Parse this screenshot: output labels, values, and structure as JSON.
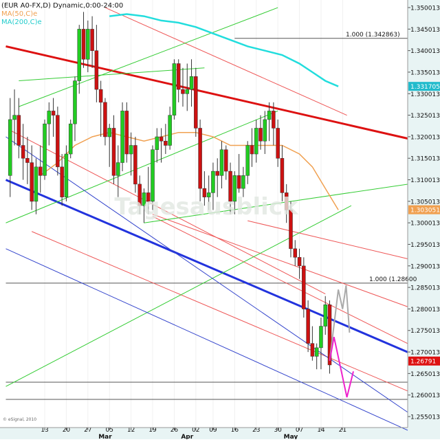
{
  "header": {
    "symbol_line": "(EUR A0-FX,D) Dynamic,0:00-24:00",
    "ma50_label": "MA(50,C)e",
    "ma200_label": "MA(200,C)e"
  },
  "watermark": "Tagesausblick",
  "copyright": "© eSignal, 2010",
  "colors": {
    "bull": "#22cc22",
    "bear": "#cc1111",
    "ma50": "#f0a050",
    "ma200": "#22dddd",
    "chart_bg": "#ffffff",
    "axis_bg": "#e8f4f4",
    "price_badge": "#dd1111",
    "ma200_badge": "#22bbcc",
    "ma50_badge": "#f0a050",
    "forecast_gray": "#aaaaaa",
    "forecast_pink": "#ee22cc"
  },
  "chart_data": {
    "type": "candlestick",
    "title": "(EUR A0-FX,D) Dynamic,0:00-24:00",
    "ylim": [
      1.2515,
      1.3515
    ],
    "x_tick_labels": [
      {
        "day": 9,
        "label": "13"
      },
      {
        "day": 14,
        "label": "20"
      },
      {
        "day": 19,
        "label": "27"
      },
      {
        "day": 24,
        "label": "05"
      },
      {
        "day": 29,
        "label": "12"
      },
      {
        "day": 34,
        "label": "19"
      },
      {
        "day": 39,
        "label": "26"
      },
      {
        "day": 44,
        "label": "02"
      },
      {
        "day": 48,
        "label": "09"
      },
      {
        "day": 53,
        "label": "16"
      },
      {
        "day": 58,
        "label": "23"
      },
      {
        "day": 63,
        "label": "30"
      },
      {
        "day": 68,
        "label": "07"
      },
      {
        "day": 73,
        "label": "14"
      },
      {
        "day": 78,
        "label": "21"
      }
    ],
    "month_labels": [
      {
        "day": 23,
        "label": "Mar"
      },
      {
        "day": 42,
        "label": "Apr"
      },
      {
        "day": 66,
        "label": "May"
      }
    ],
    "y_tick_labels": [
      "1.350013",
      "1.345013",
      "1.340013",
      "1.335013",
      "1.330013",
      "1.325013",
      "1.320013",
      "1.315013",
      "1.310013",
      "1.305013",
      "1.300013",
      "1.295013",
      "1.290013",
      "1.285013",
      "1.280013",
      "1.275013",
      "1.270013",
      "1.265013",
      "1.260013",
      "1.255013"
    ],
    "y_tick_values": [
      1.350013,
      1.345013,
      1.340013,
      1.335013,
      1.330013,
      1.325013,
      1.320013,
      1.315013,
      1.310013,
      1.305013,
      1.300013,
      1.295013,
      1.290013,
      1.285013,
      1.280013,
      1.275013,
      1.270013,
      1.265013,
      1.260013,
      1.255013
    ],
    "last_price_label": "1.26791",
    "last_price": 1.26791,
    "ma200_value_label": "1.331705",
    "ma200_value": 1.331705,
    "ma50_value_label": "1.303051",
    "ma50_value": 1.303051,
    "candles": [
      {
        "d": 1,
        "o": 1.311,
        "h": 1.329,
        "l": 1.306,
        "c": 1.324
      },
      {
        "d": 2,
        "o": 1.324,
        "h": 1.331,
        "l": 1.318,
        "c": 1.325
      },
      {
        "d": 3,
        "o": 1.325,
        "h": 1.329,
        "l": 1.315,
        "c": 1.318
      },
      {
        "d": 4,
        "o": 1.318,
        "h": 1.323,
        "l": 1.31,
        "c": 1.315
      },
      {
        "d": 5,
        "o": 1.315,
        "h": 1.32,
        "l": 1.309,
        "c": 1.314
      },
      {
        "d": 6,
        "o": 1.314,
        "h": 1.318,
        "l": 1.303,
        "c": 1.305
      },
      {
        "d": 7,
        "o": 1.305,
        "h": 1.315,
        "l": 1.302,
        "c": 1.313
      },
      {
        "d": 8,
        "o": 1.313,
        "h": 1.318,
        "l": 1.307,
        "c": 1.311
      },
      {
        "d": 9,
        "o": 1.311,
        "h": 1.324,
        "l": 1.31,
        "c": 1.323
      },
      {
        "d": 10,
        "o": 1.323,
        "h": 1.328,
        "l": 1.318,
        "c": 1.326
      },
      {
        "d": 11,
        "o": 1.326,
        "h": 1.329,
        "l": 1.32,
        "c": 1.325
      },
      {
        "d": 12,
        "o": 1.325,
        "h": 1.327,
        "l": 1.311,
        "c": 1.313
      },
      {
        "d": 13,
        "o": 1.313,
        "h": 1.316,
        "l": 1.304,
        "c": 1.306
      },
      {
        "d": 14,
        "o": 1.306,
        "h": 1.318,
        "l": 1.305,
        "c": 1.316
      },
      {
        "d": 15,
        "o": 1.316,
        "h": 1.324,
        "l": 1.315,
        "c": 1.323
      },
      {
        "d": 16,
        "o": 1.323,
        "h": 1.334,
        "l": 1.319,
        "c": 1.333
      },
      {
        "d": 17,
        "o": 1.333,
        "h": 1.346,
        "l": 1.33,
        "c": 1.345
      },
      {
        "d": 18,
        "o": 1.345,
        "h": 1.349,
        "l": 1.336,
        "c": 1.338
      },
      {
        "d": 19,
        "o": 1.338,
        "h": 1.347,
        "l": 1.335,
        "c": 1.345
      },
      {
        "d": 20,
        "o": 1.345,
        "h": 1.348,
        "l": 1.336,
        "c": 1.34
      },
      {
        "d": 21,
        "o": 1.34,
        "h": 1.346,
        "l": 1.328,
        "c": 1.331
      },
      {
        "d": 22,
        "o": 1.331,
        "h": 1.333,
        "l": 1.32,
        "c": 1.328
      },
      {
        "d": 23,
        "o": 1.328,
        "h": 1.329,
        "l": 1.318,
        "c": 1.32
      },
      {
        "d": 24,
        "o": 1.32,
        "h": 1.323,
        "l": 1.313,
        "c": 1.322
      },
      {
        "d": 25,
        "o": 1.322,
        "h": 1.325,
        "l": 1.309,
        "c": 1.311
      },
      {
        "d": 26,
        "o": 1.311,
        "h": 1.318,
        "l": 1.306,
        "c": 1.314
      },
      {
        "d": 27,
        "o": 1.314,
        "h": 1.328,
        "l": 1.312,
        "c": 1.326
      },
      {
        "d": 28,
        "o": 1.326,
        "h": 1.328,
        "l": 1.314,
        "c": 1.316
      },
      {
        "d": 29,
        "o": 1.316,
        "h": 1.321,
        "l": 1.311,
        "c": 1.318
      },
      {
        "d": 30,
        "o": 1.318,
        "h": 1.32,
        "l": 1.307,
        "c": 1.309
      },
      {
        "d": 31,
        "o": 1.309,
        "h": 1.311,
        "l": 1.302,
        "c": 1.304
      },
      {
        "d": 32,
        "o": 1.304,
        "h": 1.308,
        "l": 1.3,
        "c": 1.307
      },
      {
        "d": 33,
        "o": 1.307,
        "h": 1.313,
        "l": 1.302,
        "c": 1.305
      },
      {
        "d": 34,
        "o": 1.305,
        "h": 1.318,
        "l": 1.303,
        "c": 1.317
      },
      {
        "d": 35,
        "o": 1.317,
        "h": 1.322,
        "l": 1.314,
        "c": 1.32
      },
      {
        "d": 36,
        "o": 1.32,
        "h": 1.322,
        "l": 1.314,
        "c": 1.319
      },
      {
        "d": 37,
        "o": 1.319,
        "h": 1.323,
        "l": 1.316,
        "c": 1.318
      },
      {
        "d": 38,
        "o": 1.318,
        "h": 1.327,
        "l": 1.317,
        "c": 1.325
      },
      {
        "d": 39,
        "o": 1.325,
        "h": 1.338,
        "l": 1.324,
        "c": 1.337
      },
      {
        "d": 40,
        "o": 1.337,
        "h": 1.338,
        "l": 1.328,
        "c": 1.331
      },
      {
        "d": 41,
        "o": 1.331,
        "h": 1.336,
        "l": 1.327,
        "c": 1.33
      },
      {
        "d": 42,
        "o": 1.33,
        "h": 1.337,
        "l": 1.326,
        "c": 1.331
      },
      {
        "d": 43,
        "o": 1.331,
        "h": 1.338,
        "l": 1.327,
        "c": 1.334
      },
      {
        "d": 44,
        "o": 1.334,
        "h": 1.336,
        "l": 1.32,
        "c": 1.322
      },
      {
        "d": 45,
        "o": 1.322,
        "h": 1.324,
        "l": 1.305,
        "c": 1.308
      },
      {
        "d": 46,
        "o": 1.308,
        "h": 1.312,
        "l": 1.304,
        "c": 1.306
      },
      {
        "d": 47,
        "o": 1.306,
        "h": 1.311,
        "l": 1.303,
        "c": 1.307
      },
      {
        "d": 48,
        "o": 1.307,
        "h": 1.314,
        "l": 1.303,
        "c": 1.312
      },
      {
        "d": 49,
        "o": 1.312,
        "h": 1.315,
        "l": 1.306,
        "c": 1.311
      },
      {
        "d": 50,
        "o": 1.311,
        "h": 1.319,
        "l": 1.308,
        "c": 1.317
      },
      {
        "d": 51,
        "o": 1.317,
        "h": 1.318,
        "l": 1.31,
        "c": 1.312
      },
      {
        "d": 52,
        "o": 1.312,
        "h": 1.314,
        "l": 1.302,
        "c": 1.305
      },
      {
        "d": 53,
        "o": 1.305,
        "h": 1.312,
        "l": 1.302,
        "c": 1.311
      },
      {
        "d": 54,
        "o": 1.311,
        "h": 1.316,
        "l": 1.307,
        "c": 1.308
      },
      {
        "d": 55,
        "o": 1.308,
        "h": 1.313,
        "l": 1.306,
        "c": 1.311
      },
      {
        "d": 56,
        "o": 1.311,
        "h": 1.319,
        "l": 1.309,
        "c": 1.318
      },
      {
        "d": 57,
        "o": 1.318,
        "h": 1.322,
        "l": 1.313,
        "c": 1.316
      },
      {
        "d": 58,
        "o": 1.316,
        "h": 1.324,
        "l": 1.314,
        "c": 1.322
      },
      {
        "d": 59,
        "o": 1.322,
        "h": 1.325,
        "l": 1.317,
        "c": 1.319
      },
      {
        "d": 60,
        "o": 1.319,
        "h": 1.326,
        "l": 1.316,
        "c": 1.324
      },
      {
        "d": 61,
        "o": 1.324,
        "h": 1.328,
        "l": 1.319,
        "c": 1.326
      },
      {
        "d": 62,
        "o": 1.326,
        "h": 1.328,
        "l": 1.318,
        "c": 1.322
      },
      {
        "d": 63,
        "o": 1.322,
        "h": 1.324,
        "l": 1.313,
        "c": 1.315
      },
      {
        "d": 64,
        "o": 1.315,
        "h": 1.318,
        "l": 1.305,
        "c": 1.307
      },
      {
        "d": 65,
        "o": 1.307,
        "h": 1.309,
        "l": 1.3,
        "c": 1.303
      },
      {
        "d": 66,
        "o": 1.303,
        "h": 1.305,
        "l": 1.292,
        "c": 1.294
      },
      {
        "d": 67,
        "o": 1.294,
        "h": 1.296,
        "l": 1.29,
        "c": 1.292
      },
      {
        "d": 68,
        "o": 1.292,
        "h": 1.294,
        "l": 1.287,
        "c": 1.29
      },
      {
        "d": 69,
        "o": 1.29,
        "h": 1.292,
        "l": 1.278,
        "c": 1.28
      },
      {
        "d": 70,
        "o": 1.28,
        "h": 1.282,
        "l": 1.27,
        "c": 1.272
      },
      {
        "d": 71,
        "o": 1.272,
        "h": 1.276,
        "l": 1.268,
        "c": 1.269
      },
      {
        "d": 72,
        "o": 1.269,
        "h": 1.272,
        "l": 1.266,
        "c": 1.271
      },
      {
        "d": 73,
        "o": 1.271,
        "h": 1.278,
        "l": 1.266,
        "c": 1.276
      },
      {
        "d": 74,
        "o": 1.276,
        "h": 1.283,
        "l": 1.274,
        "c": 1.281
      },
      {
        "d": 75,
        "o": 1.281,
        "h": 1.282,
        "l": 1.265,
        "c": 1.267
      }
    ],
    "ma50_points": [
      [
        8,
        1.311
      ],
      [
        12,
        1.314
      ],
      [
        16,
        1.318
      ],
      [
        20,
        1.32
      ],
      [
        24,
        1.321
      ],
      [
        28,
        1.32
      ],
      [
        32,
        1.319
      ],
      [
        36,
        1.32
      ],
      [
        40,
        1.321
      ],
      [
        44,
        1.321
      ],
      [
        48,
        1.32
      ],
      [
        52,
        1.318
      ],
      [
        56,
        1.318
      ],
      [
        60,
        1.318
      ],
      [
        64,
        1.318
      ],
      [
        68,
        1.316
      ],
      [
        71,
        1.313
      ],
      [
        74,
        1.308
      ],
      [
        77,
        1.303
      ]
    ],
    "ma200_points": [
      [
        24,
        1.348
      ],
      [
        28,
        1.3485
      ],
      [
        32,
        1.348
      ],
      [
        36,
        1.347
      ],
      [
        40,
        1.3465
      ],
      [
        44,
        1.3455
      ],
      [
        48,
        1.344
      ],
      [
        52,
        1.3425
      ],
      [
        56,
        1.341
      ],
      [
        60,
        1.34
      ],
      [
        64,
        1.339
      ],
      [
        68,
        1.337
      ],
      [
        71,
        1.335
      ],
      [
        74,
        1.333
      ],
      [
        77,
        1.3317
      ]
    ],
    "horizontal_levels": [
      {
        "value": 1.342863,
        "label": "1.000 (1.342863)",
        "from_day": 53
      },
      {
        "value": 1.286,
        "label": "1.000 (1.28600",
        "from_day": 0
      },
      {
        "value": 1.263,
        "label": "",
        "from_day": 0
      },
      {
        "value": 1.259,
        "label": "",
        "from_day": 0
      }
    ],
    "trend_lines": [
      {
        "color": "#dd1111",
        "width": 3,
        "p1": [
          0,
          1.341
        ],
        "p2": [
          100,
          1.318
        ]
      },
      {
        "color": "#2233dd",
        "width": 3,
        "p1": [
          0,
          1.31
        ],
        "p2": [
          100,
          1.267
        ]
      },
      {
        "color": "#ee5555",
        "width": 1,
        "p1": [
          23,
          1.35
        ],
        "p2": [
          79,
          1.325
        ]
      },
      {
        "color": "#ee5555",
        "width": 1,
        "p1": [
          1,
          1.3215
        ],
        "p2": [
          74,
          1.2835
        ]
      },
      {
        "color": "#ee5555",
        "width": 1,
        "p1": [
          6,
          1.298
        ],
        "p2": [
          100,
          1.258
        ]
      },
      {
        "color": "#ee5555",
        "width": 1,
        "p1": [
          34,
          1.302
        ],
        "p2": [
          100,
          1.278
        ]
      },
      {
        "color": "#ee5555",
        "width": 1,
        "p1": [
          34,
          1.3015
        ],
        "p2": [
          100,
          1.2685
        ]
      },
      {
        "color": "#ee5555",
        "width": 1,
        "p1": [
          56,
          1.3005
        ],
        "p2": [
          100,
          1.29
        ]
      },
      {
        "color": "#33cc33",
        "width": 1,
        "p1": [
          3,
          1.327
        ],
        "p2": [
          63,
          1.35
        ]
      },
      {
        "color": "#33cc33",
        "width": 1,
        "p1": [
          3,
          1.333
        ],
        "p2": [
          46,
          1.336
        ]
      },
      {
        "color": "#33cc33",
        "width": 1,
        "p1": [
          0,
          1.3
        ],
        "p2": [
          63,
          1.326
        ]
      },
      {
        "color": "#33cc33",
        "width": 1,
        "p1": [
          0,
          1.262
        ],
        "p2": [
          80,
          1.304
        ]
      },
      {
        "color": "#33cc33",
        "width": 1,
        "p1": [
          32,
          1.3
        ],
        "p2": [
          100,
          1.31
        ]
      },
      {
        "color": "#3344cc",
        "width": 1,
        "p1": [
          0,
          1.32
        ],
        "p2": [
          96,
          1.254
        ]
      },
      {
        "color": "#3344cc",
        "width": 1,
        "p1": [
          0,
          1.294
        ],
        "p2": [
          96,
          1.2505
        ]
      }
    ],
    "forecast_paths": [
      {
        "color": "#aaaaaa",
        "points": [
          [
            75,
            1.268
          ],
          [
            77,
            1.2845
          ],
          [
            78,
            1.28
          ],
          [
            78.8,
            1.2855
          ],
          [
            79.6,
            1.2745
          ]
        ]
      },
      {
        "color": "#ee22cc",
        "points": [
          [
            75,
            1.268
          ],
          [
            76,
            1.2735
          ],
          [
            77.5,
            1.2665
          ],
          [
            79,
            1.2595
          ],
          [
            80.5,
            1.2655
          ]
        ]
      }
    ]
  }
}
